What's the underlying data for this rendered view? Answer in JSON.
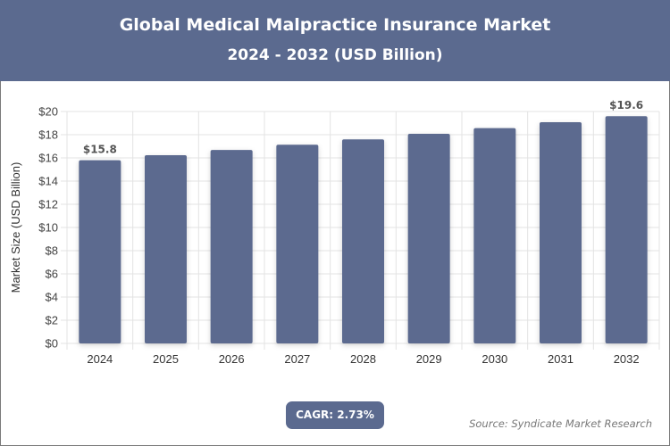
{
  "header": {
    "title": "Global Medical Malpractice Insurance Market",
    "subtitle": "2024 - 2032 (USD Billion)"
  },
  "footer": {
    "cagr": "CAGR: 2.73%",
    "source": "Source: Syndicate Market Research"
  },
  "colors": {
    "bar": "#5b6a8f",
    "header": "#5b6a8f"
  },
  "chart_data": {
    "type": "bar",
    "title": "Global Medical Malpractice Insurance Market",
    "subtitle": "2024 - 2032 (USD Billion)",
    "xlabel": "",
    "ylabel": "Market Size (USD Billion)",
    "categories": [
      "2024",
      "2025",
      "2026",
      "2027",
      "2028",
      "2029",
      "2030",
      "2031",
      "2032"
    ],
    "values": [
      15.8,
      16.23,
      16.68,
      17.13,
      17.6,
      18.08,
      18.57,
      19.08,
      19.6
    ],
    "data_labels": {
      "0": "$15.8",
      "8": "$19.6"
    },
    "ylim": [
      0,
      20
    ],
    "yticks": [
      "$0",
      "$2",
      "$4",
      "$6",
      "$8",
      "$10",
      "$12",
      "$14",
      "$16",
      "$18",
      "$20"
    ],
    "grid": true
  }
}
